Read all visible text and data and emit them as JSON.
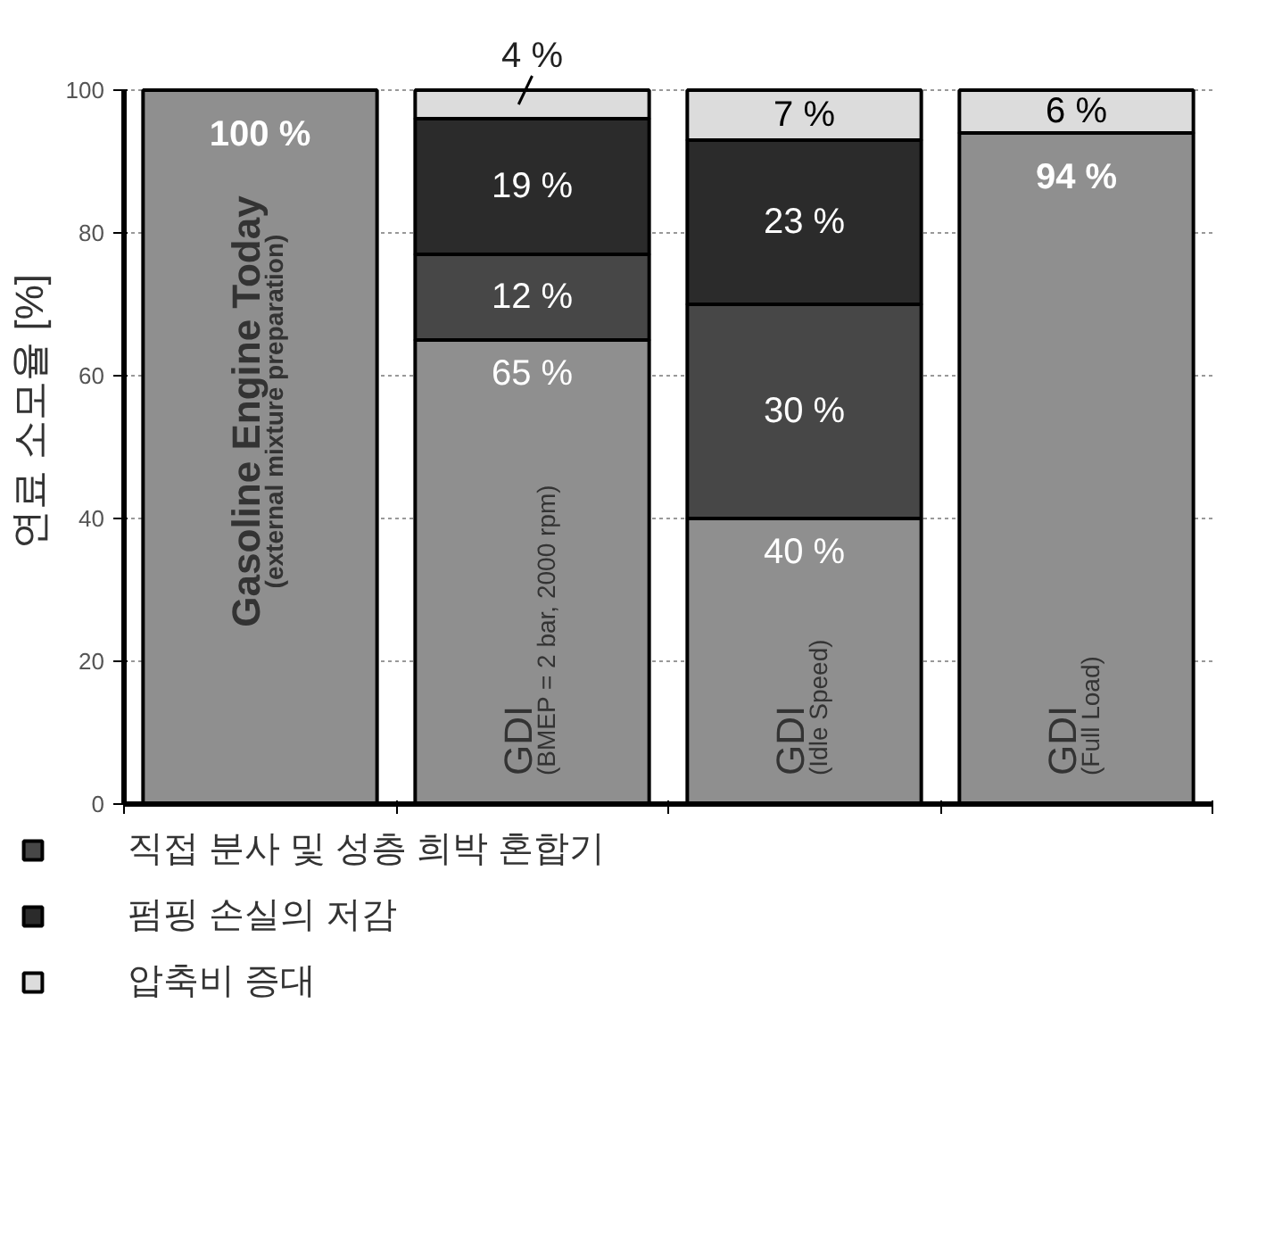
{
  "chart_data": {
    "type": "bar",
    "stacked": true,
    "ylabel": "연료 소모율 [%]",
    "categories": [
      null,
      null,
      null,
      null
    ],
    "series": [
      {
        "color": "#8f8f8f",
        "values": [
          100,
          65,
          40,
          94
        ],
        "value_labels": [
          "100 %",
          "65 %",
          "40 %",
          "94 %"
        ]
      },
      {
        "name": "직접 분사 및 성층 희박 혼합기",
        "color": "#474747",
        "values": [
          0,
          12,
          30,
          0
        ],
        "value_labels": [
          null,
          "12 %",
          "30 %",
          null
        ]
      },
      {
        "name": "펌핑 손실의 저감",
        "color": "#2b2b2b",
        "values": [
          0,
          19,
          23,
          0
        ],
        "value_labels": [
          null,
          "19 %",
          "23 %",
          null
        ]
      },
      {
        "name": "압축비 증대",
        "color": "#dcdcdc",
        "values": [
          0,
          4,
          7,
          6
        ],
        "value_labels": [
          null,
          "4 %",
          "7 %",
          "6 %"
        ]
      }
    ],
    "annotations": [
      "Gasoline Engine Today",
      "(external mixture preparation)",
      "GDI",
      "(BMEP = 2 bar, 2000 rpm)",
      "GDI",
      "(Idle Speed)",
      "GDI",
      "(Full Load)"
    ],
    "ylim": [
      0,
      100
    ],
    "yticks": [
      0,
      20,
      40,
      60,
      80,
      100
    ],
    "grid": "y",
    "legend": "bottom",
    "tick_labels": "y"
  }
}
